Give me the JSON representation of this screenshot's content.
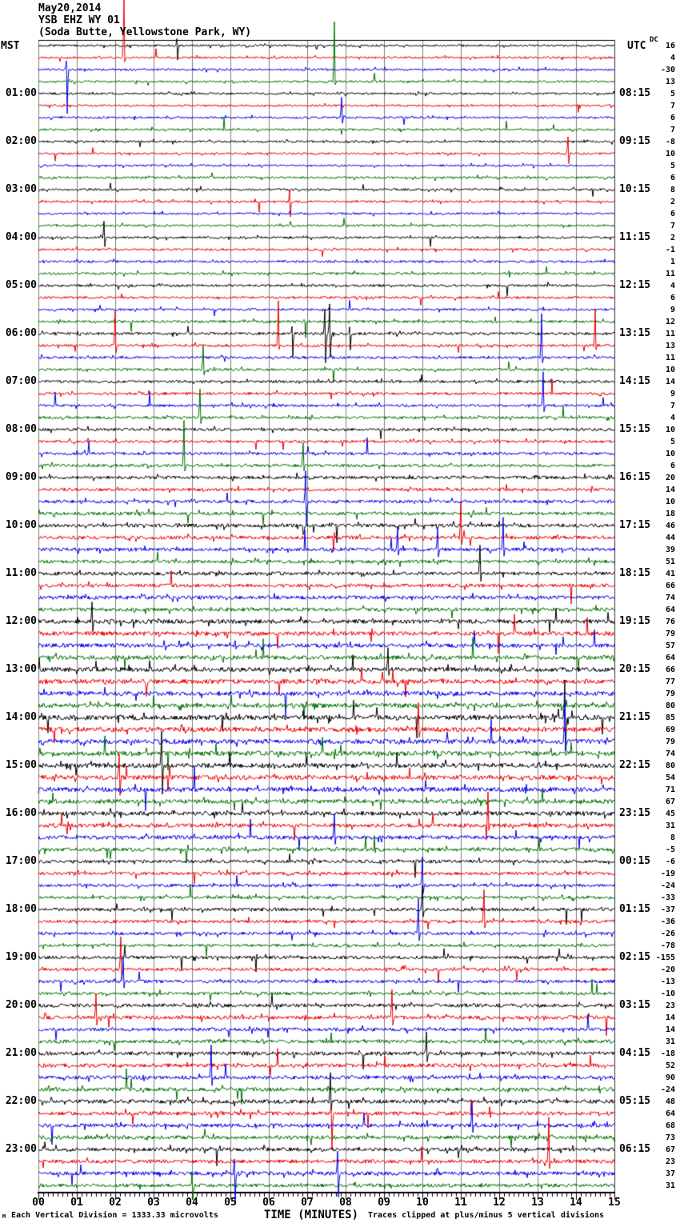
{
  "title": {
    "line1": "May20,2014",
    "line2": "YSB EHZ WY 01",
    "line3": "(Soda Butte, Yellowstone Park, WY)"
  },
  "axis_headers": {
    "left": "MST",
    "right": "UTC",
    "dc": "DC"
  },
  "x_axis": {
    "label": "TIME (MINUTES)",
    "tick_labels": [
      "00",
      "01",
      "02",
      "03",
      "04",
      "05",
      "06",
      "07",
      "08",
      "09",
      "10",
      "11",
      "12",
      "13",
      "14",
      "15"
    ],
    "minor_subdivisions_per_minute": 8
  },
  "footer": {
    "scale_note": "Each Vertical Division = 1333.33 microvolts",
    "clip_note": "Traces clipped at plus/minus 5 vertical divisions",
    "watermark": "M"
  },
  "hour_labels": [
    {
      "row": 4,
      "mst": "01:00",
      "utc": "08:15"
    },
    {
      "row": 8,
      "mst": "02:00",
      "utc": "09:15"
    },
    {
      "row": 12,
      "mst": "03:00",
      "utc": "10:15"
    },
    {
      "row": 16,
      "mst": "04:00",
      "utc": "11:15"
    },
    {
      "row": 20,
      "mst": "05:00",
      "utc": "12:15"
    },
    {
      "row": 24,
      "mst": "06:00",
      "utc": "13:15"
    },
    {
      "row": 28,
      "mst": "07:00",
      "utc": "14:15"
    },
    {
      "row": 32,
      "mst": "08:00",
      "utc": "15:15"
    },
    {
      "row": 36,
      "mst": "09:00",
      "utc": "16:15"
    },
    {
      "row": 40,
      "mst": "10:00",
      "utc": "17:15"
    },
    {
      "row": 44,
      "mst": "11:00",
      "utc": "18:15"
    },
    {
      "row": 48,
      "mst": "12:00",
      "utc": "19:15"
    },
    {
      "row": 52,
      "mst": "13:00",
      "utc": "20:15"
    },
    {
      "row": 56,
      "mst": "14:00",
      "utc": "21:15"
    },
    {
      "row": 60,
      "mst": "15:00",
      "utc": "22:15"
    },
    {
      "row": 64,
      "mst": "16:00",
      "utc": "23:15"
    },
    {
      "row": 68,
      "mst": "17:00",
      "utc": "00:15"
    },
    {
      "row": 72,
      "mst": "18:00",
      "utc": "01:15"
    },
    {
      "row": 76,
      "mst": "19:00",
      "utc": "02:15"
    },
    {
      "row": 80,
      "mst": "20:00",
      "utc": "03:15"
    },
    {
      "row": 84,
      "mst": "21:00",
      "utc": "04:15"
    },
    {
      "row": 88,
      "mst": "22:00",
      "utc": "05:15"
    },
    {
      "row": 92,
      "mst": "23:00",
      "utc": "06:15"
    }
  ],
  "chart_data": {
    "type": "line",
    "subtype": "helicorder-seismogram",
    "station": "YSB EHZ WY 01",
    "date": "May20,2014",
    "rows": 96,
    "minutes_per_row": 15,
    "x_range_minutes": [
      0,
      15
    ],
    "grid": "vertical gray line each minute",
    "trace_colors_cycle": [
      "#000000",
      "#ee0000",
      "#0000ee",
      "#007100"
    ],
    "grid_color": "#7f7f7f",
    "clip_divisions": 5,
    "microvolts_per_division": "1333.33",
    "dc_values": [
      16,
      4,
      -30,
      13,
      5,
      7,
      6,
      7,
      -8,
      10,
      5,
      6,
      8,
      2,
      6,
      7,
      2,
      -1,
      1,
      11,
      4,
      6,
      9,
      12,
      11,
      13,
      11,
      10,
      14,
      9,
      7,
      4,
      10,
      5,
      10,
      6,
      20,
      14,
      10,
      18,
      46,
      44,
      39,
      51,
      41,
      66,
      74,
      64,
      76,
      79,
      57,
      64,
      66,
      77,
      79,
      80,
      85,
      69,
      79,
      74,
      80,
      54,
      71,
      67,
      45,
      31,
      8,
      -5,
      -6,
      -19,
      -24,
      -33,
      -37,
      -36,
      -26,
      -78,
      -155,
      -20,
      -13,
      -10,
      23,
      14,
      14,
      31,
      -18,
      52,
      90,
      -24,
      48,
      64,
      68,
      73,
      67,
      23,
      37,
      31
    ],
    "row_noise_amps": [
      1.3,
      1.3,
      1.4,
      1.3,
      1.3,
      1.3,
      1.3,
      1.4,
      1.4,
      1.3,
      1.3,
      1.4,
      1.4,
      1.4,
      1.3,
      1.4,
      1.4,
      1.4,
      1.5,
      1.5,
      1.5,
      1.5,
      1.5,
      1.6,
      1.7,
      1.6,
      1.6,
      1.6,
      1.7,
      1.7,
      1.6,
      1.7,
      1.8,
      1.7,
      1.8,
      1.8,
      2.0,
      1.9,
      2.0,
      2.0,
      2.2,
      2.2,
      2.2,
      2.1,
      2.2,
      2.2,
      2.3,
      2.3,
      2.6,
      2.6,
      2.5,
      2.6,
      2.8,
      2.8,
      2.7,
      2.8,
      3.0,
      3.0,
      2.9,
      2.9,
      2.9,
      2.8,
      2.8,
      2.7,
      2.6,
      2.5,
      2.4,
      2.3,
      2.0,
      2.0,
      1.9,
      1.9,
      2.0,
      1.9,
      1.9,
      1.8,
      2.0,
      2.0,
      2.0,
      1.9,
      2.2,
      2.3,
      2.2,
      2.2,
      2.3,
      2.3,
      2.3,
      2.3,
      2.4,
      2.4,
      2.3,
      2.3,
      2.3,
      2.3,
      2.3,
      2.2
    ],
    "events": [
      [
        0,
        3.6,
        8,
        18
      ],
      [
        1,
        2.23,
        72,
        6
      ],
      [
        2,
        0.72,
        10,
        56
      ],
      [
        3,
        7.71,
        76,
        4
      ],
      [
        6,
        7.9,
        26,
        6
      ],
      [
        9,
        13.8,
        22,
        12
      ],
      [
        13,
        6.55,
        15,
        18
      ],
      [
        16,
        1.7,
        20,
        10
      ],
      [
        24,
        7.45,
        32,
        38
      ],
      [
        24,
        7.58,
        36,
        28
      ],
      [
        24,
        6.6,
        10,
        28
      ],
      [
        24,
        8.1,
        8,
        22
      ],
      [
        25,
        6.25,
        55,
        6
      ],
      [
        25,
        2.0,
        42,
        8
      ],
      [
        25,
        14.5,
        45,
        6
      ],
      [
        26,
        13.1,
        55,
        6
      ],
      [
        27,
        4.3,
        30,
        6
      ],
      [
        30,
        13.15,
        42,
        8
      ],
      [
        31,
        4.2,
        35,
        6
      ],
      [
        35,
        3.8,
        56,
        8
      ],
      [
        35,
        6.9,
        30,
        6
      ],
      [
        38,
        6.95,
        38,
        30
      ],
      [
        41,
        11.0,
        46,
        8
      ],
      [
        42,
        12.1,
        40,
        10
      ],
      [
        42,
        9.35,
        30,
        8
      ],
      [
        42,
        10.4,
        26,
        8
      ],
      [
        44,
        11.5,
        36,
        8
      ],
      [
        48,
        1.4,
        25,
        10
      ],
      [
        52,
        9.1,
        28,
        10
      ],
      [
        56,
        13.7,
        45,
        40
      ],
      [
        57,
        9.9,
        35,
        10
      ],
      [
        58,
        13.7,
        50,
        10
      ],
      [
        60,
        3.2,
        40,
        35
      ],
      [
        61,
        2.1,
        30,
        25
      ],
      [
        65,
        11.7,
        40,
        8
      ],
      [
        66,
        7.7,
        30,
        10
      ],
      [
        70,
        10.0,
        35,
        10
      ],
      [
        72,
        10.0,
        30,
        10
      ],
      [
        73,
        11.6,
        40,
        10
      ],
      [
        74,
        9.9,
        45,
        10
      ],
      [
        77,
        2.15,
        42,
        15
      ],
      [
        78,
        2.2,
        32,
        10
      ],
      [
        81,
        1.5,
        30,
        10
      ],
      [
        81,
        9.2,
        35,
        8
      ],
      [
        84,
        10.1,
        25,
        10
      ],
      [
        86,
        4.5,
        40,
        10
      ],
      [
        88,
        7.6,
        36,
        10
      ],
      [
        89,
        7.62,
        8,
        46
      ],
      [
        90,
        11.3,
        30,
        8
      ],
      [
        93,
        13.3,
        55,
        10
      ],
      [
        94,
        5.1,
        20,
        36
      ],
      [
        94,
        7.8,
        26,
        30
      ],
      [
        95,
        4.0,
        18,
        20
      ]
    ],
    "render_seed": 20140520
  }
}
